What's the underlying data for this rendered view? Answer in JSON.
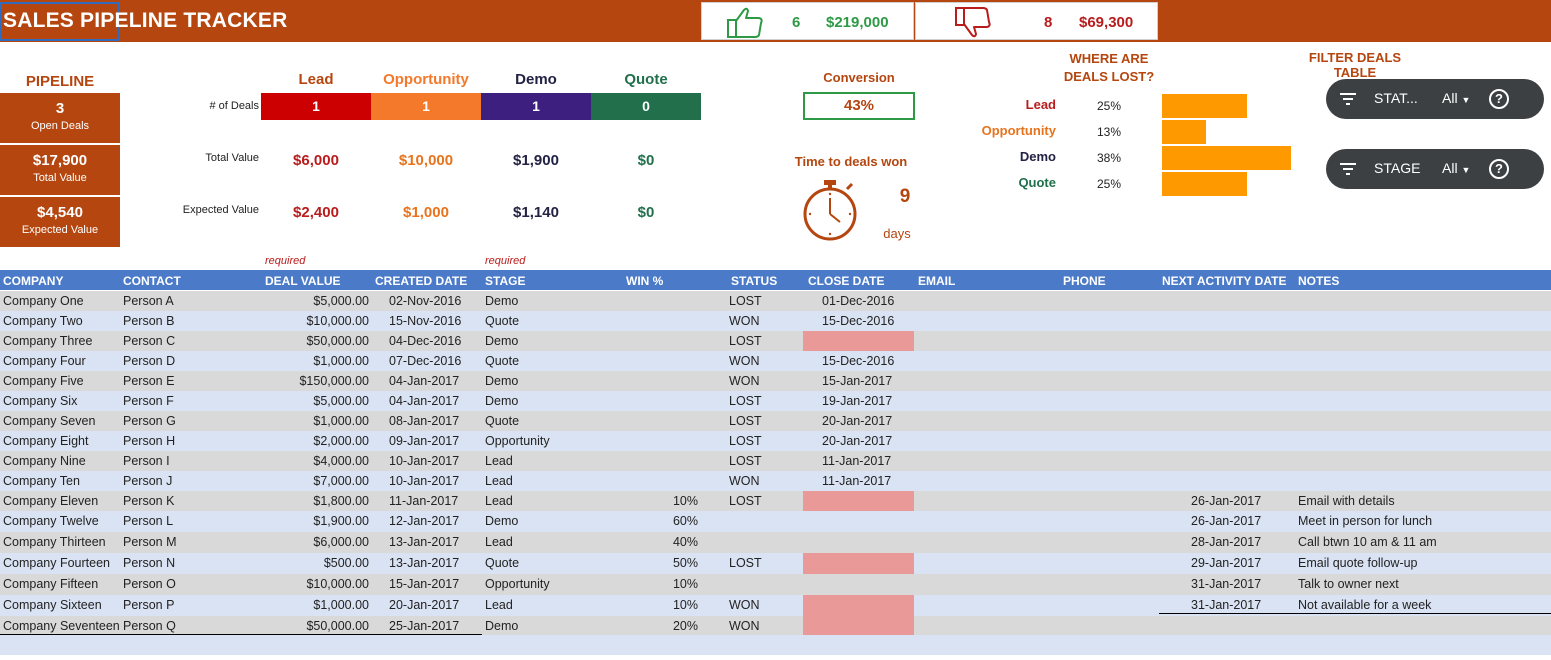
{
  "header": {
    "title": "SALES PIPELINE TRACKER",
    "won_count": "6",
    "won_amount": "$219,000",
    "lost_count": "8",
    "lost_amount": "$69,300",
    "colors": {
      "brand": "#b5460f",
      "won": "#2e9a45",
      "lost": "#b81c1c"
    }
  },
  "pipeline": {
    "label": "PIPELINE",
    "open_deals": {
      "value": "3",
      "label": "Open Deals"
    },
    "total_value": {
      "value": "$17,900",
      "label": "Total Value"
    },
    "expected_value": {
      "value": "$4,540",
      "label": "Expected Value"
    }
  },
  "stages": {
    "row_labels": {
      "deals": "# of Deals",
      "total": "Total Value",
      "expected": "Expected Value"
    },
    "items": [
      {
        "name": "Lead",
        "color": "#cc0000",
        "head_color": "#b5460f",
        "deals": "1",
        "total": "$6,000",
        "expected": "$2,400",
        "val_color": "#b81c1c"
      },
      {
        "name": "Opportunity",
        "color": "#f4792b",
        "head_color": "#f4792b",
        "deals": "1",
        "total": "$10,000",
        "expected": "$1,000",
        "val_color": "#e8731d"
      },
      {
        "name": "Demo",
        "color": "#3d1f80",
        "head_color": "#222244",
        "deals": "1",
        "total": "$1,900",
        "expected": "$1,140",
        "val_color": "#222244"
      },
      {
        "name": "Quote",
        "color": "#21704b",
        "head_color": "#21704b",
        "deals": "0",
        "total": "$0",
        "expected": "$0",
        "val_color": "#21704b"
      }
    ]
  },
  "conversion": {
    "label": "Conversion",
    "value": "43%"
  },
  "time_to_won": {
    "label": "Time to deals won",
    "value": "9",
    "unit": "days"
  },
  "deals_lost": {
    "title_line1": "WHERE ARE",
    "title_line2": "DEALS LOST?",
    "rows": [
      {
        "stage": "Lead",
        "pct": "25%",
        "fraction": 0.25,
        "color": "#b81c1c"
      },
      {
        "stage": "Opportunity",
        "pct": "13%",
        "fraction": 0.13,
        "color": "#e8731d"
      },
      {
        "stage": "Demo",
        "pct": "38%",
        "fraction": 0.38,
        "color": "#222244"
      },
      {
        "stage": "Quote",
        "pct": "25%",
        "fraction": 0.25,
        "color": "#21704b"
      }
    ],
    "bar_color": "#ff9900"
  },
  "filters": {
    "title": "FILTER DEALS TABLE",
    "items": [
      {
        "label": "STAT...",
        "value": "All"
      },
      {
        "label": "STAGE",
        "value": "All"
      }
    ]
  },
  "required_note": "required",
  "table": {
    "columns": [
      "COMPANY",
      "CONTACT",
      "DEAL VALUE",
      "CREATED DATE",
      "STAGE",
      "WIN %",
      "STATUS",
      "CLOSE DATE",
      "EMAIL",
      "PHONE",
      "NEXT ACTIVITY DATE",
      "NOTES"
    ],
    "rows": [
      {
        "company": "Company One",
        "contact": "Person A",
        "value": "$5,000.00",
        "created": "02-Nov-2016",
        "stage": "Demo",
        "win": "",
        "status": "LOST",
        "close": "01-Dec-2016",
        "next": "",
        "notes": "",
        "pink": false
      },
      {
        "company": "Company Two",
        "contact": "Person B",
        "value": "$10,000.00",
        "created": "15-Nov-2016",
        "stage": "Quote",
        "win": "",
        "status": "WON",
        "close": "15-Dec-2016",
        "next": "",
        "notes": "",
        "pink": false
      },
      {
        "company": "Company Three",
        "contact": "Person C",
        "value": "$50,000.00",
        "created": "04-Dec-2016",
        "stage": "Demo",
        "win": "",
        "status": "LOST",
        "close": "",
        "next": "",
        "notes": "",
        "pink": true
      },
      {
        "company": "Company Four",
        "contact": "Person D",
        "value": "$1,000.00",
        "created": "07-Dec-2016",
        "stage": "Quote",
        "win": "",
        "status": "WON",
        "close": "15-Dec-2016",
        "next": "",
        "notes": "",
        "pink": false
      },
      {
        "company": "Company Five",
        "contact": "Person E",
        "value": "$150,000.00",
        "created": "04-Jan-2017",
        "stage": "Demo",
        "win": "",
        "status": "WON",
        "close": "15-Jan-2017",
        "next": "",
        "notes": "",
        "pink": false
      },
      {
        "company": "Company Six",
        "contact": "Person F",
        "value": "$5,000.00",
        "created": "04-Jan-2017",
        "stage": "Demo",
        "win": "",
        "status": "LOST",
        "close": "19-Jan-2017",
        "next": "",
        "notes": "",
        "pink": false
      },
      {
        "company": "Company Seven",
        "contact": "Person G",
        "value": "$1,000.00",
        "created": "08-Jan-2017",
        "stage": "Quote",
        "win": "",
        "status": "LOST",
        "close": "20-Jan-2017",
        "next": "",
        "notes": "",
        "pink": false
      },
      {
        "company": "Company Eight",
        "contact": "Person H",
        "value": "$2,000.00",
        "created": "09-Jan-2017",
        "stage": "Opportunity",
        "win": "",
        "status": "LOST",
        "close": "20-Jan-2017",
        "next": "",
        "notes": "",
        "pink": false
      },
      {
        "company": "Company Nine",
        "contact": "Person I",
        "value": "$4,000.00",
        "created": "10-Jan-2017",
        "stage": "Lead",
        "win": "",
        "status": "LOST",
        "close": "11-Jan-2017",
        "next": "",
        "notes": "",
        "pink": false
      },
      {
        "company": "Company Ten",
        "contact": "Person J",
        "value": "$7,000.00",
        "created": "10-Jan-2017",
        "stage": "Lead",
        "win": "",
        "status": "WON",
        "close": "11-Jan-2017",
        "next": "",
        "notes": "",
        "pink": false
      },
      {
        "company": "Company Eleven",
        "contact": "Person K",
        "value": "$1,800.00",
        "created": "11-Jan-2017",
        "stage": "Lead",
        "win": "10%",
        "status": "LOST",
        "close": "",
        "next": "26-Jan-2017",
        "notes": "Email with details",
        "pink": true
      },
      {
        "company": "Company Twelve",
        "contact": "Person L",
        "value": "$1,900.00",
        "created": "12-Jan-2017",
        "stage": "Demo",
        "win": "60%",
        "status": "",
        "close": "",
        "next": "26-Jan-2017",
        "notes": "Meet in person for lunch",
        "pink": false
      },
      {
        "company": "Company Thirteen",
        "contact": "Person M",
        "value": "$6,000.00",
        "created": "13-Jan-2017",
        "stage": "Lead",
        "win": "40%",
        "status": "",
        "close": "",
        "next": "28-Jan-2017",
        "notes": "Call btwn 10 am & 11 am",
        "pink": false
      },
      {
        "company": "Company Fourteen",
        "contact": "Person N",
        "value": "$500.00",
        "created": "13-Jan-2017",
        "stage": "Quote",
        "win": "50%",
        "status": "LOST",
        "close": "",
        "next": "29-Jan-2017",
        "notes": "Email quote follow-up",
        "pink": true
      },
      {
        "company": "Company Fifteen",
        "contact": "Person O",
        "value": "$10,000.00",
        "created": "15-Jan-2017",
        "stage": "Opportunity",
        "win": "10%",
        "status": "",
        "close": "",
        "next": "31-Jan-2017",
        "notes": "Talk to owner next",
        "pink": false
      },
      {
        "company": "Company Sixteen",
        "contact": "Person P",
        "value": "$1,000.00",
        "created": "20-Jan-2017",
        "stage": "Lead",
        "win": "10%",
        "status": "WON",
        "close": "",
        "next": "31-Jan-2017",
        "notes": "Not available for a week",
        "pink": true
      },
      {
        "company": "Company Seventeen",
        "contact": "Person Q",
        "value": "$50,000.00",
        "created": "25-Jan-2017",
        "stage": "Demo",
        "win": "20%",
        "status": "WON",
        "close": "",
        "next": "",
        "notes": "",
        "pink": true
      }
    ]
  }
}
